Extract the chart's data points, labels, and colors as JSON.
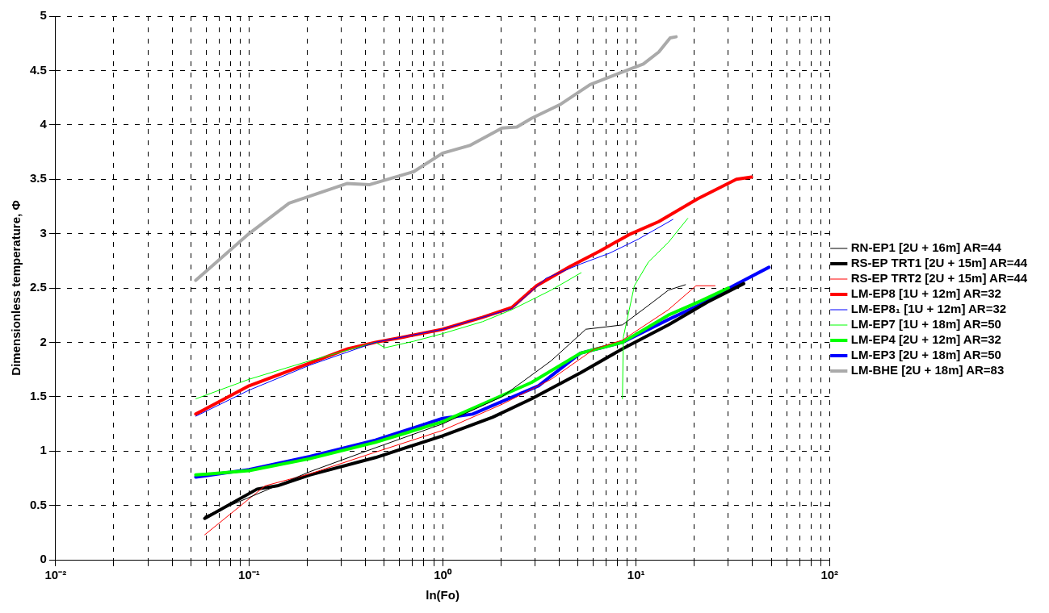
{
  "chart_data": {
    "type": "line",
    "xlabel": "ln(Fo)",
    "ylabel": "Dimensionless temperature, Φ",
    "log": "x",
    "grid": true,
    "legend": "right",
    "line_style": "solid",
    "marker": "none",
    "xlim": [
      0.01,
      100
    ],
    "ylim": [
      0,
      5
    ],
    "xticks": [
      {
        "value": 0.01,
        "label": "10⁻²"
      },
      {
        "value": 0.02,
        "label": null
      },
      {
        "value": 0.03,
        "label": null
      },
      {
        "value": 0.04,
        "label": null
      },
      {
        "value": 0.05,
        "label": null
      },
      {
        "value": 0.06,
        "label": null
      },
      {
        "value": 0.07,
        "label": null
      },
      {
        "value": 0.08,
        "label": null
      },
      {
        "value": 0.09,
        "label": null
      },
      {
        "value": 0.1,
        "label": "10⁻¹"
      },
      {
        "value": 0.2,
        "label": null
      },
      {
        "value": 0.3,
        "label": null
      },
      {
        "value": 0.4,
        "label": null
      },
      {
        "value": 0.5,
        "label": null
      },
      {
        "value": 0.6,
        "label": null
      },
      {
        "value": 0.7,
        "label": null
      },
      {
        "value": 0.8,
        "label": null
      },
      {
        "value": 0.9,
        "label": null
      },
      {
        "value": 1,
        "label": "10⁰"
      },
      {
        "value": 2,
        "label": null
      },
      {
        "value": 3,
        "label": null
      },
      {
        "value": 4,
        "label": null
      },
      {
        "value": 5,
        "label": null
      },
      {
        "value": 6,
        "label": null
      },
      {
        "value": 7,
        "label": null
      },
      {
        "value": 8,
        "label": null
      },
      {
        "value": 9,
        "label": null
      },
      {
        "value": 10,
        "label": "10¹"
      },
      {
        "value": 20,
        "label": null
      },
      {
        "value": 30,
        "label": null
      },
      {
        "value": 40,
        "label": null
      },
      {
        "value": 50,
        "label": null
      },
      {
        "value": 60,
        "label": null
      },
      {
        "value": 70,
        "label": null
      },
      {
        "value": 80,
        "label": null
      },
      {
        "value": 90,
        "label": null
      },
      {
        "value": 100,
        "label": "10²"
      }
    ],
    "yticks": [
      0,
      0.5,
      1,
      1.5,
      2,
      2.5,
      3,
      3.5,
      4,
      4.5,
      5
    ],
    "series": [
      {
        "name": "RN-EP1 [2U + 16m] AR=44",
        "color": "#000000",
        "x": [
          0.059,
          0.206,
          0.45,
          1.0,
          2.03,
          3.64,
          5.5,
          8.5,
          11.6,
          14.7,
          18
        ],
        "values": [
          0.4,
          0.81,
          1.03,
          1.25,
          1.5,
          1.83,
          2.12,
          2.16,
          2.34,
          2.48,
          2.53
        ]
      },
      {
        "name": "RS-EP TRT1 [2U + 15m] AR=44",
        "color": "#000000",
        "x": [
          0.059,
          0.11,
          0.14,
          0.206,
          0.45,
          1.0,
          1.81,
          2.88,
          5.16,
          8.5,
          14.7,
          23.4,
          36
        ],
        "values": [
          0.38,
          0.65,
          0.68,
          0.78,
          0.94,
          1.14,
          1.31,
          1.48,
          1.72,
          1.94,
          2.16,
          2.37,
          2.54
        ]
      },
      {
        "name": "RS-EP TRT2 [2U + 15m] AR=44",
        "color": "#ff0000",
        "x": [
          0.059,
          0.121,
          0.206,
          0.45,
          1.0,
          2.03,
          3.64,
          6.1,
          8.5,
          14.7,
          20.4,
          25.6
        ],
        "values": [
          0.23,
          0.68,
          0.79,
          0.99,
          1.19,
          1.43,
          1.66,
          1.94,
          2.02,
          2.3,
          2.52,
          2.52
        ]
      },
      {
        "name": "LM-EP8 [1U + 12m] AR=32",
        "color": "#ff0000",
        "x": [
          0.053,
          0.1,
          0.206,
          0.324,
          0.45,
          0.635,
          1.0,
          1.61,
          2.28,
          3.06,
          4.59,
          6.5,
          9.2,
          13.1,
          20.8,
          33,
          39.5
        ],
        "values": [
          1.34,
          1.6,
          1.81,
          1.94,
          2.0,
          2.05,
          2.12,
          2.23,
          2.32,
          2.52,
          2.7,
          2.84,
          2.99,
          3.11,
          3.32,
          3.5,
          3.52
        ]
      },
      {
        "name": "LM-EP8₁ [1U + 12m] AR=32",
        "color": "#0000ff",
        "x": [
          0.053,
          0.1,
          0.206,
          0.45,
          1.0,
          2.28,
          3.43,
          5.16,
          7.3,
          10.3,
          15.5
        ],
        "values": [
          1.32,
          1.56,
          1.79,
          2.0,
          2.12,
          2.31,
          2.59,
          2.72,
          2.82,
          2.95,
          3.13
        ]
      },
      {
        "name": "LM-EP7 [1U + 18m] AR=50",
        "color": "#00ff00",
        "x": [
          0.053,
          0.1,
          0.206,
          0.45,
          0.503,
          0.71,
          1.0,
          1.61,
          2.28,
          3.64,
          5.2,
          6.8,
          8.5,
          8.6,
          9.8,
          11.6,
          14.7,
          18.5
        ],
        "values": [
          1.48,
          1.66,
          1.83,
          2.0,
          1.95,
          2.01,
          2.08,
          2.19,
          2.3,
          2.48,
          2.64,
          null,
          1.48,
          2.05,
          2.52,
          2.74,
          2.92,
          3.14
        ]
      },
      {
        "name": "LM-EP4 [2U + 12m] AR=32",
        "color": "#00ff00",
        "x": [
          0.053,
          0.1,
          0.206,
          0.45,
          1.0,
          2.88,
          5.16,
          8.5,
          14.7,
          21.6,
          30
        ],
        "values": [
          0.78,
          0.82,
          0.93,
          1.08,
          1.27,
          1.63,
          1.9,
          2.0,
          2.25,
          2.38,
          2.5
        ]
      },
      {
        "name": "LM-EP3 [2U + 18m] AR=50",
        "color": "#0000ff",
        "x": [
          0.053,
          0.1,
          0.206,
          0.45,
          1.0,
          1.43,
          3.13,
          5.16,
          8.5,
          14.7,
          21.6,
          31.9,
          48.6
        ],
        "values": [
          0.76,
          0.83,
          0.95,
          1.1,
          1.3,
          1.34,
          1.6,
          1.9,
          2.0,
          2.21,
          2.35,
          2.52,
          2.69
        ]
      },
      {
        "name": "LM-BHE [2U + 18m] AR=83",
        "color": "#aaaaaa",
        "x": [
          0.053,
          0.1,
          0.161,
          0.32,
          0.42,
          0.71,
          1.0,
          1.38,
          2.03,
          2.42,
          2.88,
          4.08,
          5.79,
          9.2,
          10.9,
          13.1,
          15.0,
          16.1
        ],
        "values": [
          2.57,
          3.0,
          3.28,
          3.46,
          3.45,
          3.57,
          3.74,
          3.81,
          3.97,
          3.98,
          4.06,
          4.19,
          4.37,
          4.51,
          4.56,
          4.67,
          4.8,
          4.81
        ]
      }
    ]
  }
}
